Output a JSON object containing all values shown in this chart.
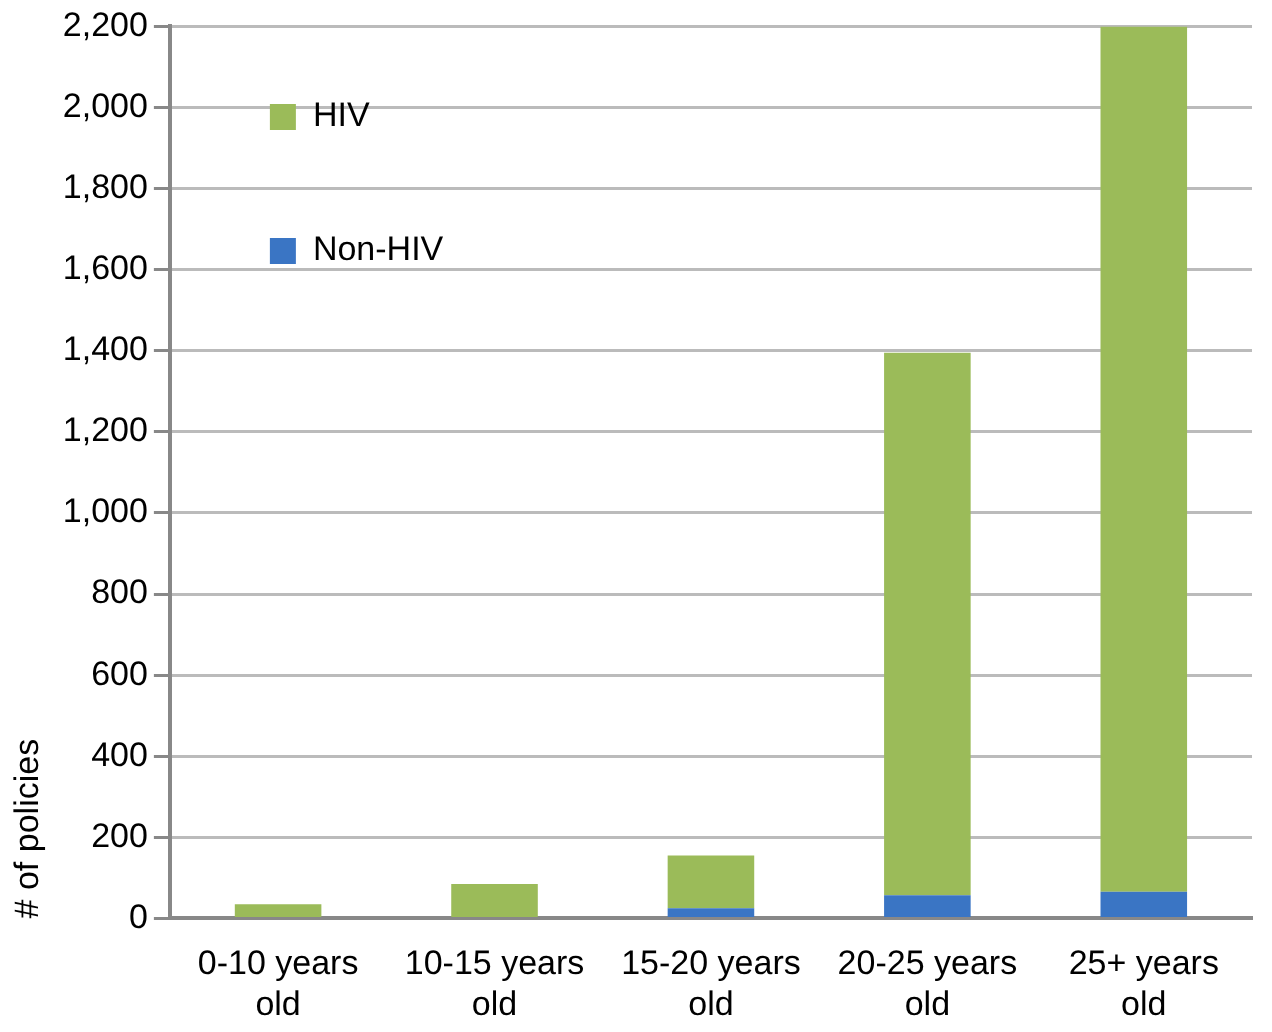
{
  "chart_data": {
    "type": "bar",
    "stacked": true,
    "ylabel": "# of policies",
    "categories": [
      "0-10 years old",
      "10-15 years old",
      "15-20 years old",
      "20-25 years old",
      "25+ years old"
    ],
    "series": [
      {
        "name": "Non-HIV",
        "color": "#3a75c4",
        "values": [
          0,
          0,
          25,
          57,
          66
        ]
      },
      {
        "name": "HIV",
        "color": "#9bbb59",
        "values": [
          35,
          85,
          130,
          1338,
          2134
        ]
      }
    ],
    "ylim": [
      0,
      2200
    ],
    "yticks": [
      0,
      200,
      400,
      600,
      800,
      {
        "value": 1000,
        "label": "1,000"
      },
      {
        "value": 1200,
        "label": "1,200"
      },
      {
        "value": 1400,
        "label": "1,400"
      },
      {
        "value": 1600,
        "label": "1,600"
      },
      {
        "value": 1800,
        "label": "1,800"
      },
      {
        "value": 2000,
        "label": "2,000"
      },
      {
        "value": 2200,
        "label": "2,200"
      }
    ],
    "grid": "y",
    "legend": "top left"
  }
}
